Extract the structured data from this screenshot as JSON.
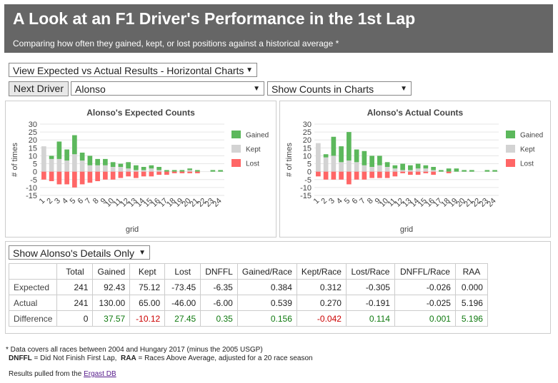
{
  "header": {
    "title": "A Look at an F1 Driver's Performance in the 1st Lap",
    "subtitle": "Comparing how often they gained, kept, or lost positions against a historical average *"
  },
  "controls": {
    "view_select": "View Expected vs Actual Results - Horizontal Charts",
    "next_driver_button": "Next Driver",
    "driver_select": "Alonso",
    "counts_select": "Show Counts in Charts",
    "details_select": "Show Alonso's Details Only"
  },
  "colors": {
    "gained": "#5cb85c",
    "kept": "#d3d3d3",
    "lost": "#ff6666"
  },
  "chart_data": [
    {
      "type": "bar",
      "title": "Alonso's Expected Counts",
      "xlabel": "grid",
      "ylabel": "# of times",
      "ylim": [
        -15,
        30
      ],
      "yticks": [
        30,
        25,
        20,
        15,
        10,
        5,
        0,
        -5,
        -10,
        -15
      ],
      "categories": [
        "1",
        "2",
        "3",
        "4",
        "5",
        "6",
        "7",
        "8",
        "9",
        "10",
        "11",
        "12",
        "13",
        "14",
        "15",
        "16",
        "17",
        "18",
        "19",
        "20",
        "21",
        "22",
        "23",
        "24"
      ],
      "legend_position": "right",
      "series": [
        {
          "name": "Gained",
          "values": [
            0,
            2,
            11,
            7,
            12,
            5,
            6,
            4,
            4,
            3,
            2,
            4,
            3,
            2,
            2,
            2,
            1,
            1,
            1,
            1,
            1,
            0,
            1,
            1
          ]
        },
        {
          "name": "Kept",
          "values": [
            16,
            8,
            8,
            7,
            11,
            7,
            4,
            4,
            4,
            3,
            3,
            2,
            1,
            1,
            2,
            1,
            0,
            0,
            0,
            1,
            0,
            0,
            0,
            0
          ]
        },
        {
          "name": "Lost",
          "values": [
            -5,
            -6,
            -8,
            -8,
            -10,
            -8,
            -7,
            -6,
            -5,
            -5,
            -4,
            -3,
            -4,
            -3,
            -3,
            -2,
            -2,
            -1,
            -1,
            -1,
            -1,
            0,
            0,
            0
          ]
        }
      ]
    },
    {
      "type": "bar",
      "title": "Alonso's Actual Counts",
      "xlabel": "grid",
      "ylabel": "# of times",
      "ylim": [
        -15,
        30
      ],
      "yticks": [
        30,
        25,
        20,
        15,
        10,
        5,
        0,
        -5,
        -10,
        -15
      ],
      "categories": [
        "1",
        "2",
        "3",
        "4",
        "5",
        "6",
        "7",
        "8",
        "9",
        "10",
        "11",
        "12",
        "13",
        "14",
        "15",
        "16",
        "17",
        "18",
        "19",
        "20",
        "21",
        "22",
        "23",
        "24"
      ],
      "legend_position": "right",
      "series": [
        {
          "name": "Gained",
          "values": [
            0,
            2,
            12,
            10,
            18,
            8,
            9,
            7,
            6,
            3,
            2,
            4,
            3,
            3,
            2,
            2,
            1,
            2,
            2,
            1,
            1,
            0,
            1,
            1
          ]
        },
        {
          "name": "Kept",
          "values": [
            18,
            9,
            10,
            6,
            7,
            6,
            4,
            3,
            4,
            3,
            2,
            1,
            1,
            2,
            2,
            1,
            0,
            0,
            0,
            0,
            0,
            0,
            0,
            0
          ]
        },
        {
          "name": "Lost",
          "values": [
            -3,
            -5,
            -5,
            -5,
            -8,
            -5,
            -5,
            -4,
            -4,
            -4,
            -3,
            -1,
            -2,
            -2,
            -1,
            -2,
            0,
            -1,
            0,
            0,
            0,
            0,
            0,
            0
          ]
        }
      ]
    }
  ],
  "table": {
    "headers": [
      "",
      "Total",
      "Gained",
      "Kept",
      "Lost",
      "DNFFL",
      "Gained/Race",
      "Kept/Race",
      "Lost/Race",
      "DNFFL/Race",
      "RAA"
    ],
    "rows": [
      {
        "label": "Expected",
        "cells": [
          "241",
          "92.43",
          "75.12",
          "-73.45",
          "-6.35",
          "0.384",
          "0.312",
          "-0.305",
          "-0.026",
          "0.000"
        ]
      },
      {
        "label": "Actual",
        "cells": [
          "241",
          "130.00",
          "65.00",
          "-46.00",
          "-6.00",
          "0.539",
          "0.270",
          "-0.191",
          "-0.025",
          "5.196"
        ]
      },
      {
        "label": "Difference",
        "cells": [
          "0",
          "37.57",
          "-10.12",
          "27.45",
          "0.35",
          "0.156",
          "-0.042",
          "0.114",
          "0.001",
          "5.196"
        ]
      }
    ]
  },
  "footnotes": {
    "line1": "* Data covers all races between 2004 and Hungary 2017 (minus the 2005 USGP)",
    "dnffl_term": "DNFFL",
    "dnffl_def": " = Did Not Finish First Lap,  ",
    "raa_term": "RAA",
    "raa_def": " = Races Above Average, adjusted for a 20 race season",
    "results_text": "Results pulled from the ",
    "results_link": "Ergast DB"
  }
}
